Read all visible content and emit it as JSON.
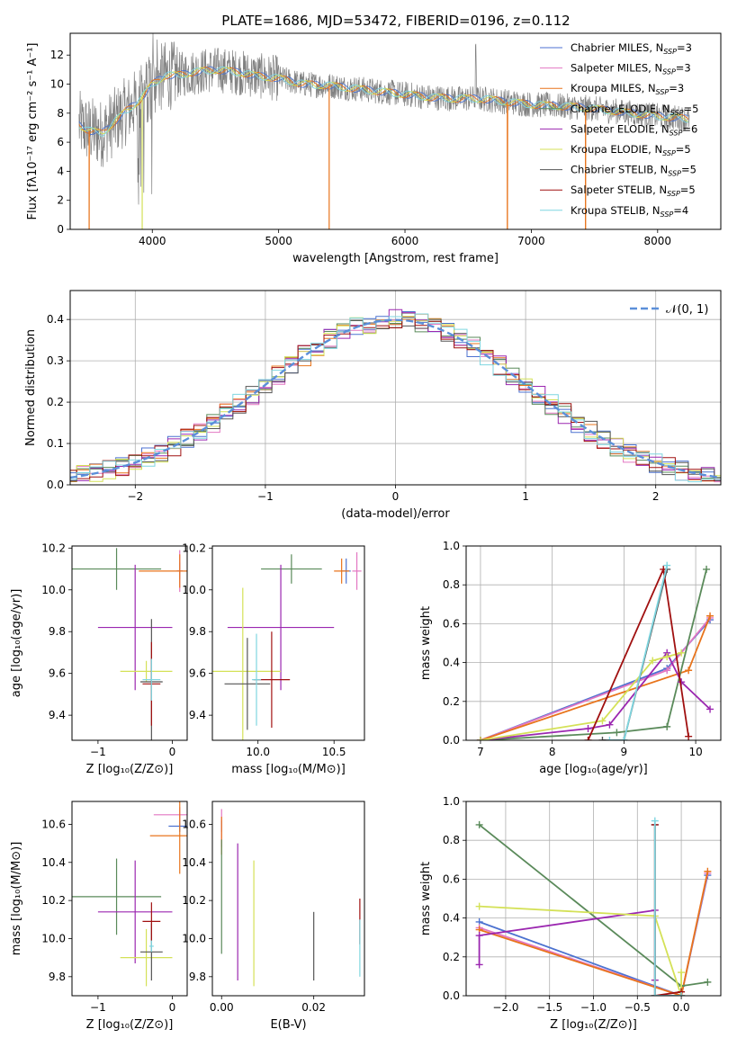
{
  "figure": {
    "title": "PLATE=1686, MJD=53472, FIBERID=0196, z=0.112"
  },
  "colors": {
    "Chabrier MILES": "#4c72d0",
    "Salpeter MILES": "#e377c2",
    "Kroupa MILES": "#e8741c",
    "Chabrier ELODIE": "#5a8a5a",
    "Salpeter ELODIE": "#9b27b0",
    "Kroupa ELODIE": "#d4e157",
    "Chabrier STELIB": "#555555",
    "Salpeter STELIB": "#a01010",
    "Kroupa STELIB": "#7fd6e0",
    "data": "#808080",
    "normal": "#5b8fd9"
  },
  "legend_spectrum": [
    {
      "name": "Chabrier MILES, N",
      "sub": "SSP",
      "n": "=3"
    },
    {
      "name": "Salpeter MILES, N",
      "sub": "SSP",
      "n": "=3"
    },
    {
      "name": "Kroupa MILES, N",
      "sub": "SSP",
      "n": "=3"
    },
    {
      "name": "Chabrier ELODIE, N",
      "sub": "SSP",
      "n": "=5"
    },
    {
      "name": "Salpeter ELODIE, N",
      "sub": "SSP",
      "n": "=6"
    },
    {
      "name": "Kroupa ELODIE, N",
      "sub": "SSP",
      "n": "=5"
    },
    {
      "name": "Chabrier STELIB, N",
      "sub": "SSP",
      "n": "=5"
    },
    {
      "name": "Salpeter STELIB, N",
      "sub": "SSP",
      "n": "=5"
    },
    {
      "name": "Kroupa STELIB, N",
      "sub": "SSP",
      "n": "=4"
    }
  ],
  "chart_data": [
    {
      "id": "spectrum",
      "type": "line",
      "xlabel": "wavelength [Angstrom, rest frame]",
      "ylabel": "Flux [fλ10⁻¹⁷ erg cm⁻² s⁻¹ A⁻¹]",
      "xlim": [
        3350,
        8500
      ],
      "ylim": [
        0,
        13.5
      ],
      "xticks": [
        4000,
        5000,
        6000,
        7000,
        8000
      ],
      "yticks": [
        0,
        2,
        4,
        6,
        8,
        10,
        12
      ],
      "continuum": [
        [
          3420,
          7.2
        ],
        [
          3500,
          6.8
        ],
        [
          3600,
          6.6
        ],
        [
          3700,
          7.4
        ],
        [
          3800,
          8.2
        ],
        [
          3900,
          8.9
        ],
        [
          4000,
          10.0
        ],
        [
          4100,
          10.6
        ],
        [
          4200,
          10.6
        ],
        [
          4300,
          10.8
        ],
        [
          4400,
          10.9
        ],
        [
          4500,
          11.0
        ],
        [
          4600,
          10.9
        ],
        [
          4700,
          10.8
        ],
        [
          4800,
          10.6
        ],
        [
          5000,
          10.4
        ],
        [
          5200,
          10.0
        ],
        [
          5400,
          9.9
        ],
        [
          5600,
          9.7
        ],
        [
          5800,
          9.5
        ],
        [
          6000,
          9.3
        ],
        [
          6200,
          9.1
        ],
        [
          6400,
          9.0
        ],
        [
          6600,
          9.0
        ],
        [
          6800,
          8.8
        ],
        [
          7000,
          8.6
        ],
        [
          7200,
          8.5
        ],
        [
          7400,
          8.4
        ],
        [
          7600,
          8.2
        ],
        [
          7800,
          8.0
        ],
        [
          8000,
          7.8
        ],
        [
          8250,
          7.6
        ]
      ],
      "spikes": [
        3500,
        3920,
        5400,
        6810,
        7430
      ]
    },
    {
      "id": "residuals",
      "type": "step",
      "xlabel": "(data-model)/error",
      "ylabel": "Normed distribution",
      "xlim": [
        -2.5,
        2.5
      ],
      "ylim": [
        0,
        0.47
      ],
      "xticks": [
        -2,
        -1,
        0,
        1,
        2
      ],
      "yticks": [
        0.0,
        0.1,
        0.2,
        0.3,
        0.4
      ],
      "legend": "𝒩(0, 1)",
      "bin_width": 0.1
    },
    {
      "id": "age_vs_Z",
      "type": "errorbar",
      "xlabel": "Z [log₁₀(Z/Z⊙)]",
      "ylabel": "age  [log₁₀(age/yr)]",
      "xlim": [
        -1.35,
        0.2
      ],
      "ylim": [
        9.28,
        10.21
      ],
      "xticks": [
        -1,
        0
      ],
      "yticks": [
        9.4,
        9.6,
        9.8,
        10.0,
        10.2
      ],
      "points": [
        {
          "s": "Chabrier MILES",
          "x": 0.1,
          "y": 10.09,
          "xe": 0.04,
          "ye": 0.04
        },
        {
          "s": "Salpeter MILES",
          "x": 0.1,
          "y": 10.09,
          "xe": 0.04,
          "ye": 0.1
        },
        {
          "s": "Kroupa MILES",
          "x": 0.1,
          "y": 10.09,
          "xe": 0.55,
          "ye": 0.08
        },
        {
          "s": "Chabrier ELODIE",
          "x": -0.75,
          "y": 10.1,
          "xe": 0.6,
          "ye": 0.1
        },
        {
          "s": "Salpeter ELODIE",
          "x": -0.5,
          "y": 9.82,
          "xe": 0.5,
          "ye": 0.3
        },
        {
          "s": "Kroupa ELODIE",
          "x": -0.35,
          "y": 9.61,
          "xe": 0.35,
          "ye": 0.05
        },
        {
          "s": "Chabrier STELIB",
          "x": -0.28,
          "y": 9.56,
          "xe": 0.15,
          "ye": 0.3
        },
        {
          "s": "Salpeter STELIB",
          "x": -0.28,
          "y": 9.55,
          "xe": 0.12,
          "ye": 0.2
        },
        {
          "s": "Kroupa STELIB",
          "x": -0.28,
          "y": 9.57,
          "xe": 0.12,
          "ye": 0.1
        }
      ]
    },
    {
      "id": "age_vs_mass",
      "type": "errorbar",
      "xlabel": "mass [log₁₀(M/M⊙)]",
      "ylabel": "",
      "xlim": [
        9.7,
        10.7
      ],
      "ylim": [
        9.28,
        10.21
      ],
      "xticks": [
        10.0,
        10.5
      ],
      "yticks": [
        9.4,
        9.6,
        9.8,
        10.0,
        10.2
      ],
      "points": [
        {
          "s": "Chabrier MILES",
          "x": 10.58,
          "y": 10.09,
          "xe": 0.03,
          "ye": 0.06
        },
        {
          "s": "Salpeter MILES",
          "x": 10.65,
          "y": 10.09,
          "xe": 0.03,
          "ye": 0.09
        },
        {
          "s": "Kroupa MILES",
          "x": 10.55,
          "y": 10.09,
          "xe": 0.05,
          "ye": 0.06
        },
        {
          "s": "Chabrier ELODIE",
          "x": 10.22,
          "y": 10.1,
          "xe": 0.2,
          "ye": 0.07
        },
        {
          "s": "Salpeter ELODIE",
          "x": 10.15,
          "y": 9.82,
          "xe": 0.35,
          "ye": 0.3
        },
        {
          "s": "Kroupa ELODIE",
          "x": 9.9,
          "y": 9.61,
          "xe": 0.25,
          "ye": 0.4
        },
        {
          "s": "Chabrier STELIB",
          "x": 9.93,
          "y": 9.55,
          "xe": 0.15,
          "ye": 0.22
        },
        {
          "s": "Salpeter STELIB",
          "x": 10.09,
          "y": 9.57,
          "xe": 0.12,
          "ye": 0.23
        },
        {
          "s": "Kroupa STELIB",
          "x": 9.99,
          "y": 9.57,
          "xe": 0.03,
          "ye": 0.22
        }
      ]
    },
    {
      "id": "weight_vs_age",
      "type": "line",
      "xlabel": "age  [log₁₀(age/yr)]",
      "ylabel": "mass weight",
      "xlim": [
        6.8,
        10.35
      ],
      "ylim": [
        0,
        1.0
      ],
      "xticks": [
        7,
        8,
        9,
        10
      ],
      "yticks": [
        0.0,
        0.2,
        0.4,
        0.6,
        0.8,
        1.0
      ],
      "series": [
        {
          "name": "Chabrier MILES",
          "x": [
            7.0,
            9.6,
            10.2
          ],
          "y": [
            0.0,
            0.37,
            0.62
          ]
        },
        {
          "name": "Salpeter MILES",
          "x": [
            7.0,
            9.6,
            10.2
          ],
          "y": [
            0.0,
            0.36,
            0.63
          ]
        },
        {
          "name": "Kroupa MILES",
          "x": [
            7.0,
            9.9,
            10.2
          ],
          "y": [
            0.0,
            0.36,
            0.64
          ]
        },
        {
          "name": "Chabrier ELODIE",
          "x": [
            7.0,
            8.9,
            9.6,
            10.15
          ],
          "y": [
            0.0,
            0.04,
            0.07,
            0.88
          ]
        },
        {
          "name": "Salpeter ELODIE",
          "x": [
            7.0,
            8.5,
            8.8,
            9.6,
            9.8,
            10.2
          ],
          "y": [
            0.0,
            0.06,
            0.08,
            0.45,
            0.3,
            0.16
          ]
        },
        {
          "name": "Kroupa ELODIE",
          "x": [
            7.0,
            8.7,
            9.4,
            9.6,
            9.8
          ],
          "y": [
            0.0,
            0.1,
            0.41,
            0.43,
            0.45
          ]
        },
        {
          "name": "Chabrier STELIB",
          "x": [
            8.7,
            9.0,
            9.6
          ],
          "y": [
            0.0,
            0.0,
            0.88
          ]
        },
        {
          "name": "Salpeter STELIB",
          "x": [
            8.5,
            9.55,
            9.9
          ],
          "y": [
            0.0,
            0.88,
            0.02
          ]
        },
        {
          "name": "Kroupa STELIB",
          "x": [
            8.8,
            9.0,
            9.6
          ],
          "y": [
            0.0,
            0.0,
            0.9
          ]
        }
      ]
    },
    {
      "id": "mass_vs_Z",
      "type": "errorbar",
      "xlabel": "Z [log₁₀(Z/Z⊙)]",
      "ylabel": "mass [log₁₀(M/M⊙)]",
      "xlim": [
        -1.35,
        0.2
      ],
      "ylim": [
        9.7,
        10.72
      ],
      "xticks": [
        -1,
        0
      ],
      "yticks": [
        9.8,
        10.0,
        10.2,
        10.4,
        10.6
      ],
      "points": [
        {
          "s": "Chabrier MILES",
          "x": 0.1,
          "y": 10.59,
          "xe": 0.15,
          "ye": 0.03
        },
        {
          "s": "Salpeter MILES",
          "x": 0.1,
          "y": 10.65,
          "xe": 0.35,
          "ye": 0.04
        },
        {
          "s": "Kroupa MILES",
          "x": 0.1,
          "y": 10.54,
          "xe": 0.4,
          "ye": 0.2
        },
        {
          "s": "Chabrier ELODIE",
          "x": -0.75,
          "y": 10.22,
          "xe": 0.6,
          "ye": 0.2
        },
        {
          "s": "Salpeter ELODIE",
          "x": -0.5,
          "y": 10.14,
          "xe": 0.5,
          "ye": 0.27
        },
        {
          "s": "Kroupa ELODIE",
          "x": -0.35,
          "y": 9.9,
          "xe": 0.35,
          "ye": 0.15
        },
        {
          "s": "Chabrier STELIB",
          "x": -0.28,
          "y": 9.93,
          "xe": 0.15,
          "ye": 0.15
        },
        {
          "s": "Salpeter STELIB",
          "x": -0.28,
          "y": 10.09,
          "xe": 0.12,
          "ye": 0.1
        },
        {
          "s": "Kroupa STELIB",
          "x": -0.28,
          "y": 9.96,
          "xe": 0.03,
          "ye": 0.03
        }
      ]
    },
    {
      "id": "mass_vs_ebv",
      "type": "errorbar",
      "xlabel": "E(B-V)",
      "ylabel": "",
      "xlim": [
        -0.002,
        0.031
      ],
      "ylim": [
        9.7,
        10.72
      ],
      "xticks": [
        0.0,
        0.02
      ],
      "yticks": [
        9.8,
        10.0,
        10.2,
        10.4,
        10.6
      ],
      "points": [
        {
          "s": "Chabrier MILES",
          "x": 0.0,
          "y": 10.59,
          "xe": 0,
          "ye": 0.03
        },
        {
          "s": "Salpeter MILES",
          "x": 0.0,
          "y": 10.58,
          "xe": 0,
          "ye": 0.1
        },
        {
          "s": "Kroupa MILES",
          "x": 0.0,
          "y": 10.54,
          "xe": 0,
          "ye": 0.1
        },
        {
          "s": "Chabrier ELODIE",
          "x": 0.0,
          "y": 10.22,
          "xe": 0,
          "ye": 0.3
        },
        {
          "s": "Salpeter ELODIE",
          "x": 0.0035,
          "y": 10.14,
          "xe": 0,
          "ye": 0.36
        },
        {
          "s": "Kroupa ELODIE",
          "x": 0.007,
          "y": 10.08,
          "xe": 0,
          "ye": 0.33
        },
        {
          "s": "Chabrier STELIB",
          "x": 0.02,
          "y": 9.96,
          "xe": 0,
          "ye": 0.18
        },
        {
          "s": "Salpeter STELIB",
          "x": 0.03,
          "y": 10.09,
          "xe": 0,
          "ye": 0.12
        },
        {
          "s": "Kroupa STELIB",
          "x": 0.03,
          "y": 9.95,
          "xe": 0,
          "ye": 0.15
        }
      ]
    },
    {
      "id": "weight_vs_Z",
      "type": "line",
      "xlabel": "Z [log₁₀(Z/Z⊙)]",
      "ylabel": "mass weight",
      "xlim": [
        -2.45,
        0.45
      ],
      "ylim": [
        0,
        1.0
      ],
      "xticks": [
        -2.0,
        -1.5,
        -1.0,
        -0.5,
        0.0
      ],
      "yticks": [
        0.0,
        0.2,
        0.4,
        0.6,
        0.8,
        1.0
      ],
      "series": [
        {
          "name": "Chabrier MILES",
          "x": [
            -2.3,
            0.0,
            0.3
          ],
          "y": [
            0.38,
            0.0,
            0.62
          ]
        },
        {
          "name": "Salpeter MILES",
          "x": [
            -2.3,
            0.0,
            0.3
          ],
          "y": [
            0.35,
            0.0,
            0.63
          ]
        },
        {
          "name": "Kroupa MILES",
          "x": [
            -2.3,
            0.0,
            0.3
          ],
          "y": [
            0.34,
            0.0,
            0.64
          ]
        },
        {
          "name": "Chabrier ELODIE",
          "x": [
            -2.3,
            0.0,
            0.3
          ],
          "y": [
            0.88,
            0.05,
            0.07
          ]
        },
        {
          "name": "Salpeter ELODIE",
          "x": [
            -2.3,
            -2.3,
            -0.3,
            -0.3
          ],
          "y": [
            0.16,
            0.31,
            0.44,
            0.08
          ]
        },
        {
          "name": "Kroupa ELODIE",
          "x": [
            -2.3,
            -0.3,
            0.0,
            0.0
          ],
          "y": [
            0.46,
            0.41,
            0.0,
            0.12
          ]
        },
        {
          "name": "Chabrier STELIB",
          "x": [
            -0.3,
            -0.3,
            0.0
          ],
          "y": [
            0.88,
            0.0,
            0.0
          ]
        },
        {
          "name": "Salpeter STELIB",
          "x": [
            -0.3,
            -0.3,
            0.0
          ],
          "y": [
            0.88,
            0.0,
            0.02
          ]
        },
        {
          "name": "Kroupa STELIB",
          "x": [
            -0.3,
            -0.3,
            0.0
          ],
          "y": [
            0.9,
            0.0,
            0.0
          ]
        }
      ]
    }
  ]
}
